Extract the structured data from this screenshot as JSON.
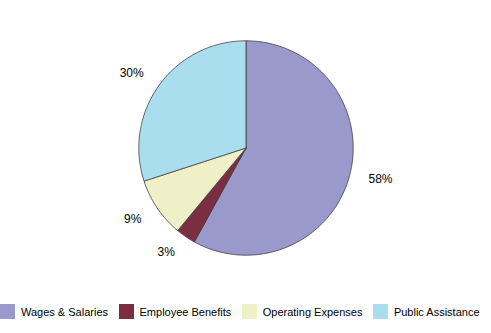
{
  "chart_data": {
    "type": "pie",
    "categories": [
      "Wages & Salaries",
      "Employee Benefits",
      "Operating Expenses",
      "Public Assistance"
    ],
    "values": [
      58,
      3,
      9,
      30
    ],
    "value_labels": [
      "58%",
      "3%",
      "9%",
      "30%"
    ],
    "colors": [
      "#9999cc",
      "#7b2d42",
      "#f0f0c8",
      "#aadeee"
    ],
    "data_labels": true,
    "legend": "bottom"
  }
}
